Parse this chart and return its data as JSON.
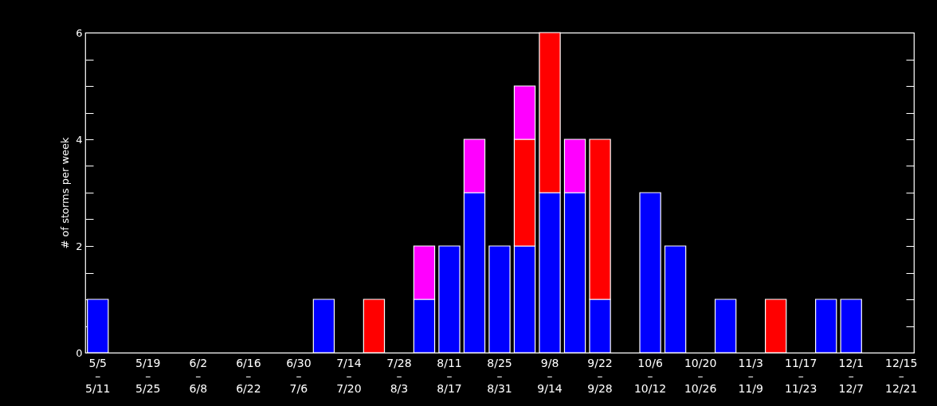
{
  "chart_data": {
    "type": "bar",
    "stacked": true,
    "ylabel": "# of storms per week",
    "categories": [
      "5/5\n–\n5/11",
      null,
      "5/19\n–\n5/25",
      null,
      "6/2\n–\n6/8",
      null,
      "6/16\n–\n6/22",
      null,
      "6/30\n–\n7/6",
      null,
      "7/14\n–\n7/20",
      null,
      "7/28\n–\n8/3",
      null,
      "8/11\n–\n8/17",
      null,
      "8/25\n–\n8/31",
      null,
      "9/8\n–\n9/14",
      null,
      "9/22\n–\n9/28",
      null,
      "10/6\n–\n10/12",
      null,
      "10/20\n–\n10/26",
      null,
      "11/3\n–\n11/9",
      null,
      "11/17\n–\n11/23",
      null,
      "12/1\n–\n12/7",
      null,
      "12/15\n–\n12/21"
    ],
    "series": [
      {
        "color": "#0000ff",
        "values": [
          1,
          null,
          null,
          null,
          null,
          null,
          null,
          null,
          null,
          1,
          null,
          null,
          null,
          1,
          2,
          3,
          2,
          2,
          3,
          3,
          1,
          null,
          3,
          2,
          null,
          1,
          null,
          null,
          null,
          1,
          1,
          null,
          null
        ]
      },
      {
        "color": "#ff0000",
        "values": [
          null,
          null,
          null,
          null,
          null,
          null,
          null,
          null,
          null,
          null,
          null,
          1,
          null,
          null,
          null,
          null,
          null,
          2,
          3,
          null,
          3,
          null,
          null,
          null,
          null,
          null,
          null,
          1,
          null,
          null,
          null,
          null,
          null
        ]
      },
      {
        "color": "#ff00ff",
        "values": [
          null,
          null,
          null,
          null,
          null,
          null,
          null,
          null,
          null,
          null,
          null,
          null,
          null,
          1,
          null,
          1,
          null,
          1,
          null,
          1,
          null,
          null,
          null,
          null,
          null,
          null,
          null,
          null,
          null,
          null,
          null,
          null,
          null
        ]
      }
    ],
    "ylim": [
      0,
      6
    ],
    "yticks": [
      0,
      {
        "value": 0.5,
        "label": null
      },
      {
        "value": 1,
        "label": null
      },
      {
        "value": 1.5,
        "label": null
      },
      2,
      {
        "value": 2.5,
        "label": null
      },
      {
        "value": 3,
        "label": null
      },
      {
        "value": 3.5,
        "label": null
      },
      4,
      {
        "value": 4.5,
        "label": null
      },
      {
        "value": 5,
        "label": null
      },
      {
        "value": 5.5,
        "label": null
      },
      6
    ],
    "grid": false,
    "legend": false
  }
}
